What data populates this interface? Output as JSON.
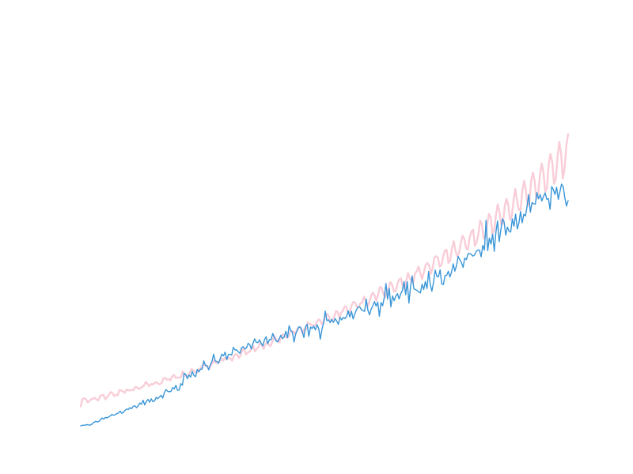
{
  "chart_data": {
    "type": "line",
    "axes_visible": false,
    "grid": false,
    "legend": "none",
    "xlim": [
      0,
      287
    ],
    "ylim": [
      0,
      1000
    ],
    "series": [
      {
        "color": "#f9cdd8",
        "values": [
          55.4,
          76.7,
          78.4,
          76.6,
          66.7,
          71.3,
          76.3,
          76.9,
          80.3,
          75.2,
          72.8,
          84.8,
          87.4,
          88.5,
          75.6,
          81.3,
          88.2,
          96.3,
          93.7,
          85.1,
          88.3,
          87.2,
          102.2,
          101.3,
          97.8,
          94.4,
          103.4,
          101.8,
          100.7,
          102.9,
          101.2,
          111.0,
          109.8,
          105.2,
          107.9,
          110.9,
          115.3,
          125.7,
          119.3,
          113.1,
          119.3,
          117.9,
          122.6,
          125.2,
          119.8,
          119.3,
          122.7,
          135.3,
          136.9,
          131.6,
          133.5,
          130.0,
          141.4,
          145.3,
          136.9,
          138.3,
          137.4,
          138.9,
          155.9,
          144.9,
          141.6,
          144.0,
          152.1,
          162.0,
          158.2,
          154.0,
          151.3,
          160.6,
          164.4,
          170.3,
          177.0,
          171.5,
          171.4,
          163.5,
          174.5,
          179.4,
          187.2,
          178.1,
          181.4,
          183.4,
          193.2,
          186.5,
          194.2,
          189.7,
          193.1,
          193.1,
          186.0,
          198.7,
          204.6,
          203.4,
          193.8,
          202.8,
          219.2,
          217.0,
          204.2,
          209.6,
          212.2,
          219.8,
          229.3,
          212.5,
          219.5,
          225.1,
          237.3,
          230.3,
          219.8,
          232.6,
          240.7,
          230.3,
          228.1,
          242.3,
          256.6,
          247.5,
          242.9,
          238.5,
          256.6,
          262.2,
          255.1,
          251.6,
          253.5,
          267.5,
          270.1,
          269.7,
          261.6,
          276.1,
          281.7,
          280.7,
          263.7,
          276.5,
          275.8,
          295.5,
          291.2,
          289.2,
          286.3,
          287.2,
          294.2,
          303.5,
          302.4,
          290.0,
          297.6,
          312.5,
          319.9,
          313.6,
          298.8,
          303.4,
          309.7,
          327.8,
          325.7,
          309.2,
          322.9,
          328.8,
          341.3,
          339.6,
          320.1,
          326.8,
          344.7,
          354.4,
          351.9,
          339.2,
          339.6,
          350.7,
          351.6,
          368.9,
          357.5,
          340.1,
          353.5,
          371.3,
          380.6,
          372.8,
          357.4,
          374.9,
          396.3,
          395.1,
          377.1,
          366.3,
          384.5,
          392.6,
          410.6,
          402.7,
          383.6,
          384.7,
          405.6,
          418.4,
          421.2,
          398.3,
          391.0,
          413.8,
          436.6,
          421.2,
          414.2,
          407.7,
          436.2,
          441.6,
          454.9,
          436.1,
          419.0,
          438.6,
          459.5,
          465.0,
          458.9,
          434.0,
          450.1,
          480.3,
          484.4,
          480.8,
          455.0,
          458.7,
          483.9,
          501.7,
          502.6,
          465.4,
          473.1,
          507.3,
          527.7,
          500.1,
          484.3,
          493.4,
          522.2,
          543.2,
          534.1,
          508.2,
          503.5,
          537.2,
          554.6,
          560.0,
          514.0,
          524.2,
          547.9,
          586.5,
          575.5,
          535.6,
          540.4,
          576.2,
          605.8,
          595.5,
          548.3,
          558.9,
          602.9,
          632.7,
          610.7,
          574.9,
          578.9,
          628.8,
          648.6,
          631.1,
          588.4,
          599.9,
          644.0,
          676.8,
          643.1,
          616.5,
          617.3,
          671.7,
          699.8,
          672.1,
          627.2,
          643.7,
          700.1,
          723.7,
          698.6,
          648.2,
          662.2,
          715.5,
          750.1,
          723.2,
          668.6,
          679.9,
          749.1,
          776.8,
          752.6,
          691.8,
          704.9,
          768.7,
          811.4,
          778.1,
          706.6,
          736.5,
          802.3,
          833.3
        ]
      },
      {
        "color": "#3a96d8",
        "values": [
          0.0,
          1.2,
          1.9,
          2.2,
          3.7,
          2.0,
          2.4,
          5.4,
          9.9,
          12.4,
          11.5,
          12.3,
          16.6,
          22.3,
          18.7,
          24.1,
          22.7,
          25.0,
          28.4,
          32.3,
          30.2,
          31.6,
          34.8,
          36.1,
          42.2,
          35.5,
          38.4,
          44.0,
          48.0,
          46.4,
          52.1,
          48.9,
          55.9,
          57.2,
          51.8,
          57.3,
          65.1,
          61.5,
          73.0,
          59.5,
          69.9,
          75.4,
          67.5,
          77.0,
          68.7,
          71.3,
          81.5,
          77.5,
          82.4,
          87.2,
          79.3,
          94.8,
          103.7,
          98.6,
          97.3,
          98.4,
          108.9,
          105.9,
          115.8,
          101.3,
          102.4,
          120.4,
          115.9,
          150.2,
          147.1,
          134.6,
          145.0,
          139.4,
          155.2,
          143.7,
          140.3,
          161.1,
          153.9,
          162.0,
          161.9,
          185.4,
          172.7,
          171.5,
          160.1,
          174.3,
          184.4,
          204.7,
          185.1,
          183.8,
          178.7,
          192.3,
          204.8,
          199.7,
          210.6,
          189.3,
          203.5,
          204.4,
          202.1,
          224.1,
          217.0,
          217.1,
          211.7,
          207.0,
          222.9,
          226.0,
          219.6,
          222.4,
          235.7,
          231.9,
          219.3,
          236.3,
          248.6,
          238.1,
          237.9,
          245.7,
          235.7,
          228.1,
          246.1,
          254.6,
          234.6,
          246.7,
          245.9,
          263.7,
          252.7,
          242.9,
          239.8,
          249.2,
          258.8,
          249.0,
          253.7,
          270.2,
          251.5,
          285.9,
          272.3,
          267.6,
          239.2,
          262.9,
          272.8,
          283.0,
          280.4,
          270.2,
          252.3,
          283.1,
          290.1,
          255.5,
          282.3,
          278.1,
          284.7,
          274.2,
          288.8,
          278.1,
          247.5,
          275.8,
          293.5,
          327.7,
          300.8,
          302.7,
          294.5,
          303.9,
          295.4,
          306.1,
          299.3,
          289.8,
          309.9,
          302.6,
          309.5,
          306.7,
          312.1,
          328.5,
          310.7,
          327.2,
          305.3,
          319.6,
          331.6,
          339.0,
          339.9,
          332.5,
          328.8,
          327.2,
          362.0,
          330.1,
          317.1,
          334.0,
          342.7,
          355.1,
          341.8,
          353.4,
          313.2,
          352.3,
          343.0,
          367.5,
          406.6,
          361.9,
          392.5,
          339.9,
          370.9,
          357.5,
          370.4,
          377.5,
          362.6,
          377.3,
          386.4,
          412.1,
          374.5,
          411.4,
          350.7,
          399.2,
          428.5,
          391.8,
          389.1,
          386.8,
          382.2,
          379.8,
          404.4,
          389.5,
          412.3,
          392.2,
          440.8,
          403.8,
          384.5,
          410.5,
          445.1,
          427.1,
          425.7,
          445.8,
          405.0,
          403.8,
          429.2,
          430.0,
          441.6,
          425.1,
          439.8,
          462.8,
          441.9,
          458.0,
          484.1,
          474.7,
          466.5,
          452.7,
          479.0,
          474.9,
          491.2,
          492.5,
          489.6,
          484.9,
          488.1,
          498.3,
          502.3,
          501.6,
          483.1,
          515.4,
          502.2,
          587.0,
          500.4,
          536.6,
          519.1,
          547.7,
          498.6,
          553.4,
          585.3,
          526.5,
          559.4,
          591.2,
          582.6,
          544.6,
          567.7,
          556.0,
          553.5,
          591.6,
          570.4,
          604.8,
          562.4,
          579.0,
          612.3,
          580.1,
          604.3,
          599.6,
          627.5,
          660.6,
          610.4,
          637.8,
          634.4,
          633.2,
          666.2,
          648.5,
          660.5,
          642.4,
          655.6,
          665.5,
          647.5,
          649.0,
          618.3,
          683.4,
          674.9,
          661.0,
          681.4,
          647.2,
          668.7,
          690.6,
          683.5,
          651.3,
          628.1,
          643.3
        ]
      }
    ]
  }
}
